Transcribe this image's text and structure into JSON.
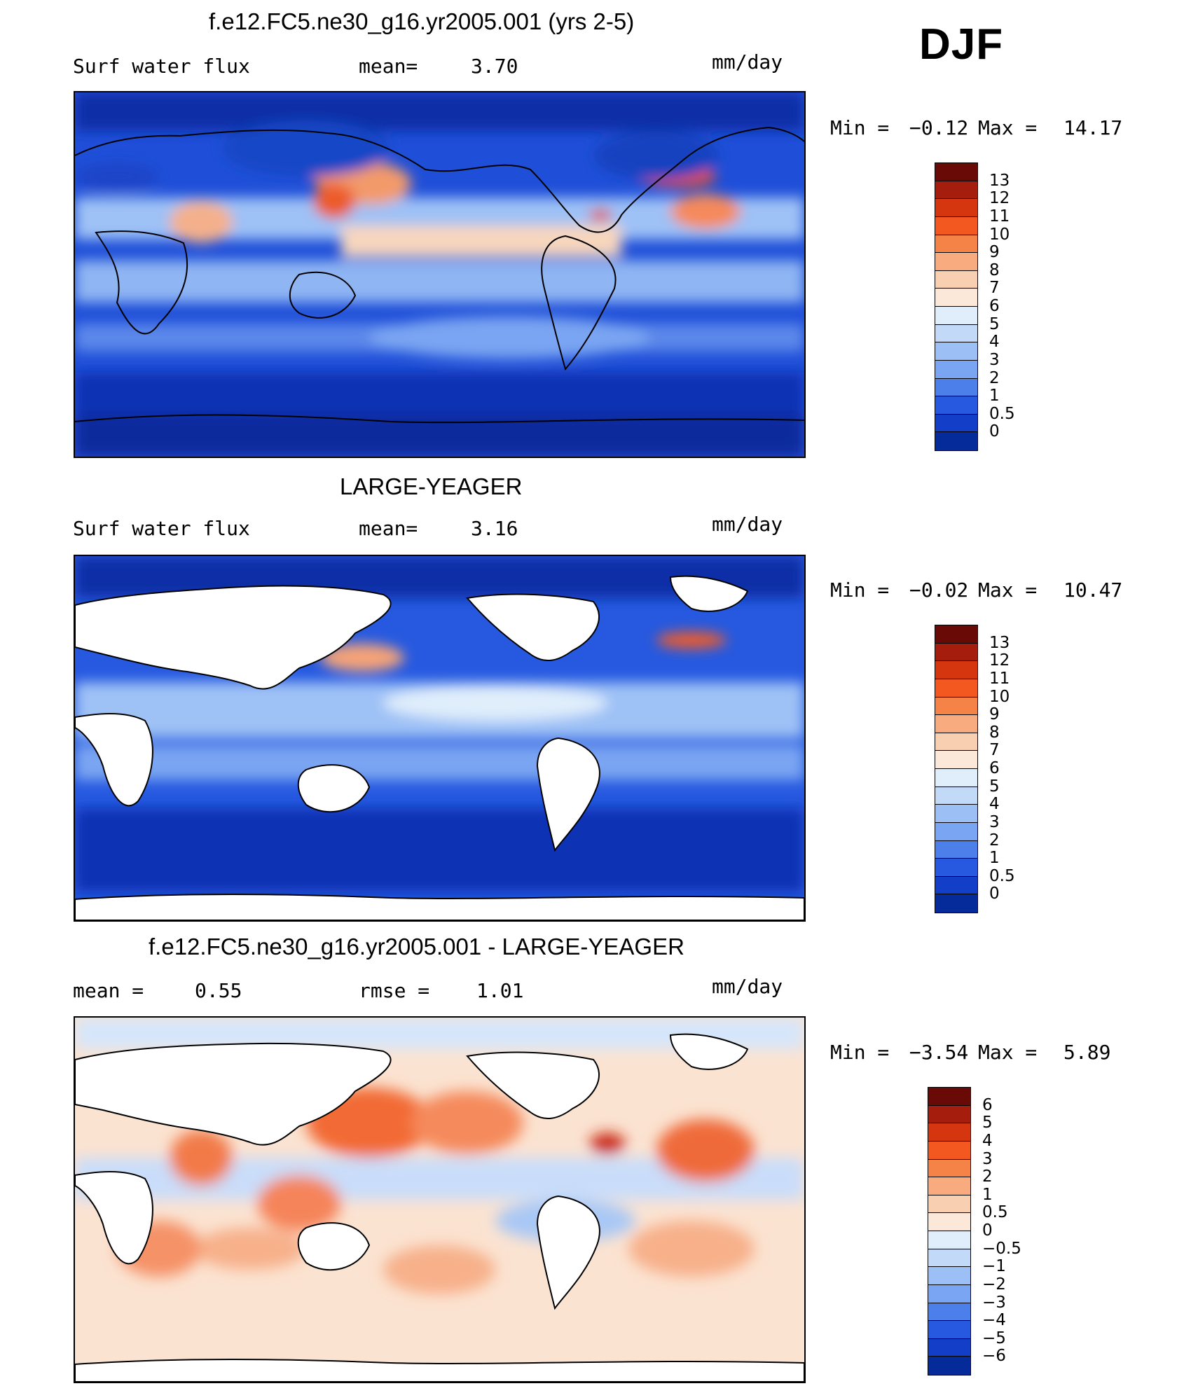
{
  "season": "DJF",
  "units": "mm/day",
  "panels": [
    {
      "title": "f.e12.FC5.ne30_g16.yr2005.001 (yrs 2-5)",
      "left_label": "Surf water flux",
      "stat_label": "mean=",
      "stat_value": "3.70",
      "min_label": "Min =",
      "min_value": "−0.12",
      "max_label": "Max =",
      "max_value": "14.17",
      "colorbar": {
        "labels": [
          "13",
          "12",
          "11",
          "10",
          "9",
          "8",
          "7",
          "6",
          "5",
          "4",
          "3",
          "2",
          "1",
          "0.5",
          "0"
        ],
        "colors": [
          "#6a0a06",
          "#a51d0d",
          "#d6360f",
          "#f2581f",
          "#f58348",
          "#f7ab7f",
          "#f9cfb2",
          "#fbe8d9",
          "#e0eefb",
          "#c2daf8",
          "#9cc0f6",
          "#7aa5f2",
          "#4c7fe9",
          "#2659e0",
          "#133fc8",
          "#052a99"
        ]
      }
    },
    {
      "title": "LARGE-YEAGER",
      "left_label": "Surf water flux",
      "stat_label": "mean=",
      "stat_value": "3.16",
      "min_label": "Min =",
      "min_value": "−0.02",
      "max_label": "Max =",
      "max_value": "10.47",
      "colorbar": {
        "labels": [
          "13",
          "12",
          "11",
          "10",
          "9",
          "8",
          "7",
          "6",
          "5",
          "4",
          "3",
          "2",
          "1",
          "0.5",
          "0"
        ],
        "colors": [
          "#6a0a06",
          "#a51d0d",
          "#d6360f",
          "#f2581f",
          "#f58348",
          "#f7ab7f",
          "#f9cfb2",
          "#fbe8d9",
          "#e0eefb",
          "#c2daf8",
          "#9cc0f6",
          "#7aa5f2",
          "#4c7fe9",
          "#2659e0",
          "#133fc8",
          "#052a99"
        ]
      }
    },
    {
      "title": "f.e12.FC5.ne30_g16.yr2005.001 - LARGE-YEAGER",
      "left_label": "mean =",
      "left_value": "0.55",
      "stat_label": "rmse =",
      "stat_value": "1.01",
      "min_label": "Min =",
      "min_value": "−3.54",
      "max_label": "Max =",
      "max_value": "5.89",
      "colorbar": {
        "labels": [
          "6",
          "5",
          "4",
          "3",
          "2",
          "1",
          "0.5",
          "0",
          "−0.5",
          "−1",
          "−2",
          "−3",
          "−4",
          "−5",
          "−6"
        ],
        "colors": [
          "#6a0a06",
          "#a51d0d",
          "#d6360f",
          "#f2581f",
          "#f58348",
          "#f7ab7f",
          "#f9cfb2",
          "#fbe8d9",
          "#e0eefb",
          "#c2daf8",
          "#9cc0f6",
          "#7aa5f2",
          "#4c7fe9",
          "#2659e0",
          "#133fc8",
          "#052a99"
        ]
      }
    }
  ]
}
